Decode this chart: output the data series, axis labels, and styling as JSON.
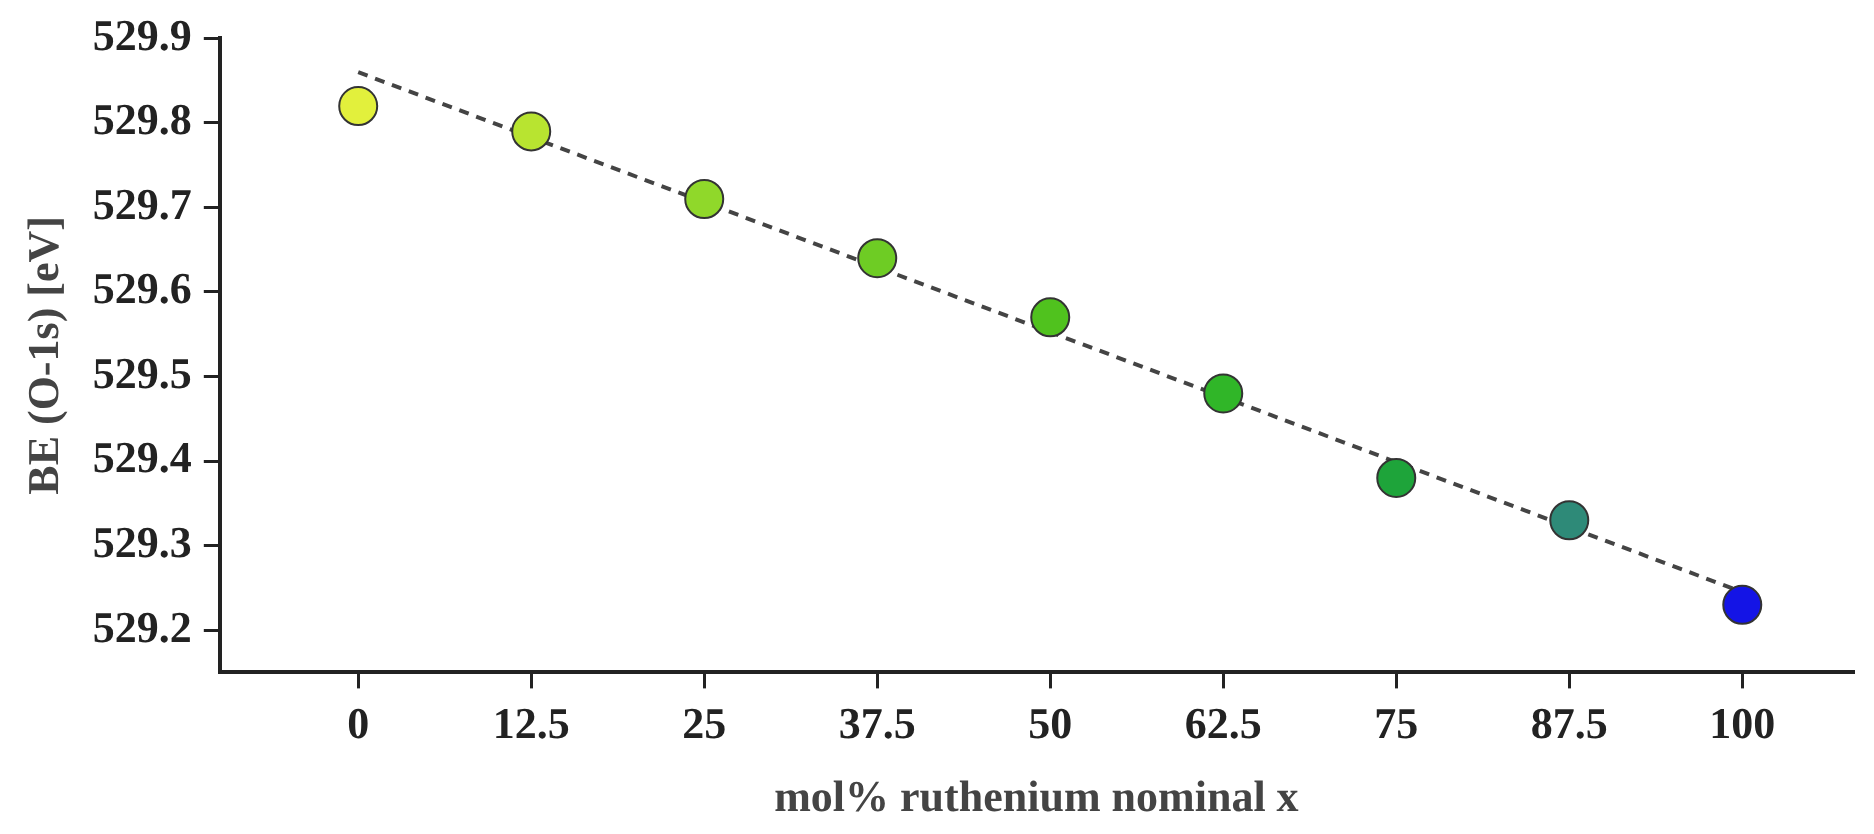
{
  "chart_data": {
    "type": "scatter",
    "xlabel": "mol% ruthenium nominal x",
    "ylabel": "BE (O-1s) [eV]",
    "x": [
      0,
      12.5,
      25,
      37.5,
      50,
      62.5,
      75,
      87.5,
      100
    ],
    "series": [
      {
        "marker": "circle",
        "values": [
          529.82,
          529.79,
          529.71,
          529.64,
          529.57,
          529.48,
          529.38,
          529.33,
          529.23
        ],
        "colors": [
          "#e2f03c",
          "#b8e430",
          "#90d82a",
          "#6ecc24",
          "#50c21e",
          "#30b628",
          "#1ea43a",
          "#2e8a78",
          "#1414e6"
        ]
      },
      {
        "type": "line",
        "x": [
          0,
          100
        ],
        "values": [
          529.86,
          529.245
        ],
        "color": "#444444",
        "line_style": "dashed",
        "marker": "none"
      }
    ],
    "xlim": [
      -10,
      108
    ],
    "ylim": [
      529.15,
      529.9
    ],
    "xticks": [
      0,
      12.5,
      25,
      37.5,
      50,
      62.5,
      75,
      87.5,
      100
    ],
    "yticks": [
      529.2,
      529.3,
      529.4,
      529.5,
      529.6,
      529.7,
      529.8,
      529.9
    ],
    "grid": false,
    "legend": false
  }
}
